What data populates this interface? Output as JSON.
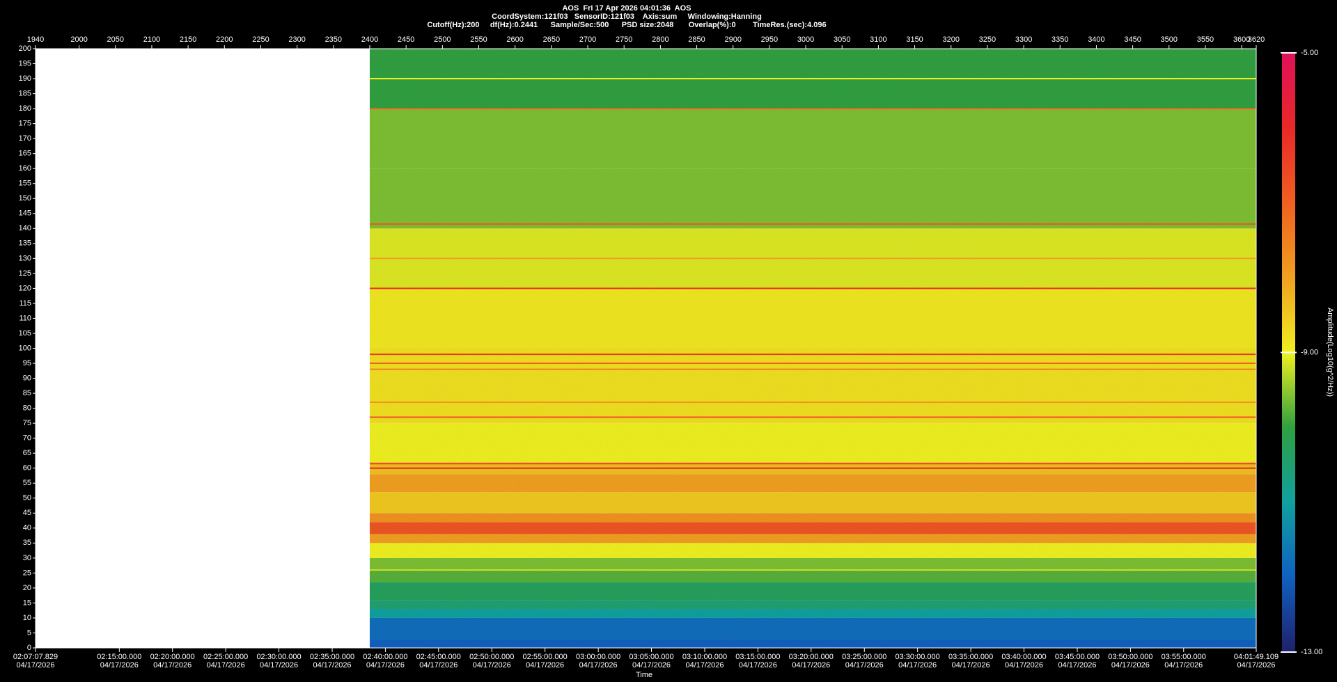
{
  "chart_data": {
    "type": "heatmap",
    "title": "AOS  Fri 17 Apr 2026 04:01:36  AOS",
    "subtitle": "CoordSystem:121f03   SensorID:121f03    Axis:sum     Windowing:Hanning",
    "settings_line": "Cutoff(Hz):200     df(Hz):0.2441      Sample/Sec:500      PSD size:2048       Overlap(%):0        TimeRes.(sec):4.096",
    "x_label": "Time",
    "xlim": [
      1940,
      3620
    ],
    "xticks": [
      1940,
      2000,
      2050,
      2100,
      2150,
      2200,
      2250,
      2300,
      2350,
      2400,
      2450,
      2500,
      2550,
      2600,
      2650,
      2700,
      2750,
      2800,
      2850,
      2900,
      2950,
      3000,
      3050,
      3100,
      3150,
      3200,
      3250,
      3300,
      3350,
      3400,
      3450,
      3500,
      3550,
      3600,
      3620
    ],
    "time_ticks": [
      {
        "value": 1940,
        "label": "02:07:07.829",
        "date": "04/17/2026"
      },
      {
        "value": 2055.3,
        "label": "02:15:00.000",
        "date": "04/17/2026"
      },
      {
        "value": 2128.5,
        "label": "02:20:00.000",
        "date": "04/17/2026"
      },
      {
        "value": 2201.8,
        "label": "02:25:00.000",
        "date": "04/17/2026"
      },
      {
        "value": 2275.0,
        "label": "02:30:00.000",
        "date": "04/17/2026"
      },
      {
        "value": 2348.3,
        "label": "02:35:00.000",
        "date": "04/17/2026"
      },
      {
        "value": 2421.5,
        "label": "02:40:00.000",
        "date": "04/17/2026"
      },
      {
        "value": 2494.7,
        "label": "02:45:00.000",
        "date": "04/17/2026"
      },
      {
        "value": 2568.0,
        "label": "02:50:00.000",
        "date": "04/17/2026"
      },
      {
        "value": 2641.2,
        "label": "02:55:00.000",
        "date": "04/17/2026"
      },
      {
        "value": 2714.5,
        "label": "03:00:00.000",
        "date": "04/17/2026"
      },
      {
        "value": 2787.7,
        "label": "03:05:00.000",
        "date": "04/17/2026"
      },
      {
        "value": 2861.0,
        "label": "03:10:00.000",
        "date": "04/17/2026"
      },
      {
        "value": 2934.2,
        "label": "03:15:00.000",
        "date": "04/17/2026"
      },
      {
        "value": 3007.4,
        "label": "03:20:00.000",
        "date": "04/17/2026"
      },
      {
        "value": 3080.7,
        "label": "03:25:00.000",
        "date": "04/17/2026"
      },
      {
        "value": 3153.9,
        "label": "03:30:00.000",
        "date": "04/17/2026"
      },
      {
        "value": 3227.2,
        "label": "03:35:00.000",
        "date": "04/17/2026"
      },
      {
        "value": 3300.4,
        "label": "03:40:00.000",
        "date": "04/17/2026"
      },
      {
        "value": 3373.7,
        "label": "03:45:00.000",
        "date": "04/17/2026"
      },
      {
        "value": 3446.9,
        "label": "03:50:00.000",
        "date": "04/17/2026"
      },
      {
        "value": 3520.1,
        "label": "03:55:00.000",
        "date": "04/17/2026"
      },
      {
        "value": 3620,
        "label": "04:01:49.109",
        "date": "04/17/2026"
      }
    ],
    "ylim": [
      0,
      200
    ],
    "yticks": [
      0,
      5,
      10,
      15,
      20,
      25,
      30,
      35,
      40,
      45,
      50,
      55,
      60,
      65,
      70,
      75,
      80,
      85,
      90,
      95,
      100,
      105,
      110,
      115,
      120,
      125,
      130,
      135,
      140,
      145,
      150,
      155,
      160,
      165,
      170,
      175,
      180,
      185,
      190,
      195,
      200
    ],
    "time_range": [
      2400,
      3620
    ],
    "bands": {
      "edges": [
        0,
        3,
        10,
        13,
        16,
        22,
        26,
        30,
        35,
        38,
        42,
        45,
        52,
        58,
        62,
        75,
        100,
        120,
        140,
        160,
        180,
        200
      ],
      "values": [
        -12.0,
        -11.8,
        -11.0,
        -10.5,
        -10.3,
        -9.8,
        -9.6,
        -9.0,
        -8.0,
        -6.8,
        -7.8,
        -8.5,
        -8.0,
        -8.4,
        -9.0,
        -8.8,
        -8.9,
        -9.1,
        -9.6,
        -9.6,
        -10.0
      ]
    },
    "lines": {
      "frequencies": [
        26,
        60,
        61.5,
        77,
        82,
        93,
        95,
        98,
        120,
        130,
        141.5,
        180,
        190
      ],
      "values": [
        -9.2,
        -6.0,
        -6.5,
        -6.8,
        -7.8,
        -7.5,
        -7.0,
        -6.3,
        -6.2,
        -8.0,
        -6.8,
        -7.0,
        -9.0
      ]
    },
    "colorbar": {
      "label": "Amplitude(Log10(g^2/Hz))",
      "lim": [
        -13,
        -5
      ],
      "ticks": [
        {
          "value": -13,
          "label": "-13.00"
        },
        {
          "value": -9,
          "label": "-9.00"
        },
        {
          "value": -5,
          "label": "-5.00"
        }
      ],
      "colors": [
        "#20206a",
        "#1060c0",
        "#10a0a0",
        "#30a040",
        "#f0f020",
        "#f0a020",
        "#f06020",
        "#e82828",
        "#e0105a"
      ]
    }
  }
}
